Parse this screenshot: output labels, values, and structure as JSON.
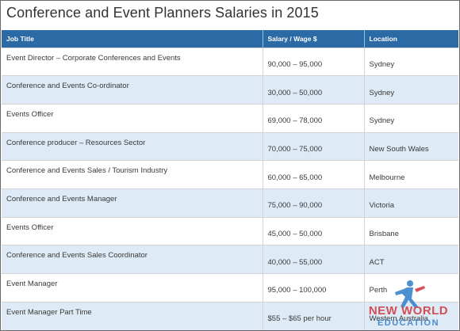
{
  "page": {
    "title": "Conference and Event Planners Salaries in 2015"
  },
  "table": {
    "headers": [
      "Job Title",
      "Salary / Wage $",
      "Location"
    ],
    "rows": [
      {
        "title": "Event Director – Corporate Conferences and Events",
        "salary": "90,000 – 95,000",
        "location": "Sydney"
      },
      {
        "title": "Conference and Events Co-ordinator",
        "salary": "30,000 – 50,000",
        "location": "Sydney"
      },
      {
        "title": "Events Officer",
        "salary": "69,000 – 78,000",
        "location": "Sydney"
      },
      {
        "title": "Conference producer – Resources Sector",
        "salary": "70,000 – 75,000",
        "location": "New South Wales"
      },
      {
        "title": "Conference and Events Sales / Tourism Industry",
        "salary": "60,000 – 65,000",
        "location": "Melbourne"
      },
      {
        "title": "Conference and Events Manager",
        "salary": "75,000 – 90,000",
        "location": "Victoria"
      },
      {
        "title": "Events Officer",
        "salary": "45,000 – 50,000",
        "location": "Brisbane"
      },
      {
        "title": "Conference and Events Sales Coordinator",
        "salary": "40,000 – 55,000",
        "location": "ACT"
      },
      {
        "title": "Event Manager",
        "salary": "95,000 – 100,000",
        "location": "Perth"
      },
      {
        "title": "Event Manager Part Time",
        "salary": "$55 – $65 per hour",
        "location": "Western Australia"
      }
    ]
  },
  "watermark": {
    "line1": "NEW WORLD",
    "line2": "EDUCATION",
    "colors": {
      "red": "#d0343a",
      "blue": "#2f7dc9"
    }
  }
}
